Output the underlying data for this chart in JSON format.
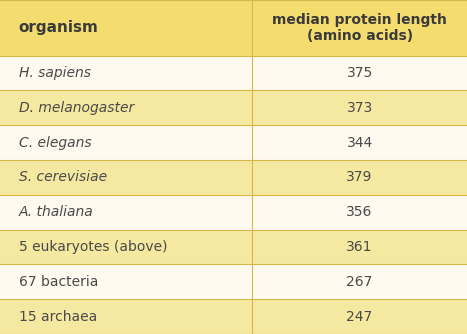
{
  "col1_header": "organism",
  "col2_header": "median protein length\n(amino acids)",
  "rows": [
    {
      "organism": "H. sapiens",
      "value": "375",
      "italic": true
    },
    {
      "organism": "D. melanogaster",
      "value": "373",
      "italic": true
    },
    {
      "organism": "C. elegans",
      "value": "344",
      "italic": true
    },
    {
      "organism": "S. cerevisiae",
      "value": "379",
      "italic": true
    },
    {
      "organism": "A. thaliana",
      "value": "356",
      "italic": true
    },
    {
      "organism": "5 eukaryotes (above)",
      "value": "361",
      "italic": false
    },
    {
      "organism": "67 bacteria",
      "value": "267",
      "italic": false
    },
    {
      "organism": "15 archaea",
      "value": "247",
      "italic": false
    }
  ],
  "row_colors": [
    "#FEFAF0",
    "#F5E8A0"
  ],
  "header_bg": "#F5DC6E",
  "border_color": "#D4B84A",
  "header_text_color": "#3A3A3A",
  "body_text_color": "#4A4A4A",
  "fig_bg": "#FEFAF0",
  "col_split": 0.54
}
